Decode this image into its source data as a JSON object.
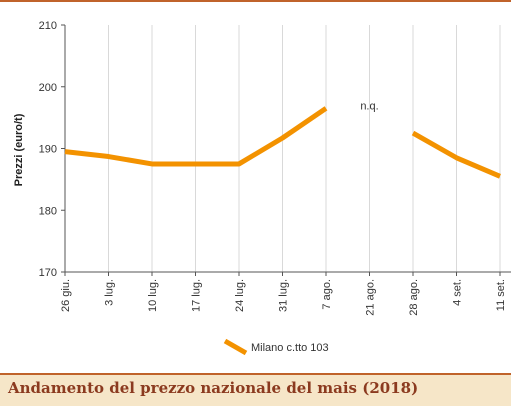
{
  "chart_data": {
    "type": "line",
    "ylabel": "Prezzi (euro/t)",
    "ylim": [
      170,
      210
    ],
    "yticks": [
      170,
      180,
      190,
      200,
      210
    ],
    "categories": [
      "26 giu.",
      "3 lug.",
      "10 lug.",
      "17 lug.",
      "24 lug.",
      "31 lug.",
      "7 ago.",
      "21 ago.",
      "28 ago.",
      "4 set.",
      "11 set."
    ],
    "series": [
      {
        "name": "Milano  c.tto 103",
        "values": [
          189.5,
          188.7,
          187.5,
          187.5,
          187.5,
          191.7,
          196.5,
          null,
          192.5,
          188.5,
          185.5
        ]
      }
    ],
    "annotations": [
      {
        "text": "n.q.",
        "category": "21 ago.",
        "y": 197
      }
    ],
    "grid": "vertical",
    "legend": "bottom-center",
    "line_color": "#f39200"
  },
  "caption": "Andamento del prezzo nazionale del mais (2018)",
  "colors": {
    "accent": "#c0632b",
    "caption_bg": "#f6e6c8",
    "caption_text": "#8b3a1f",
    "series": "#f39200"
  }
}
